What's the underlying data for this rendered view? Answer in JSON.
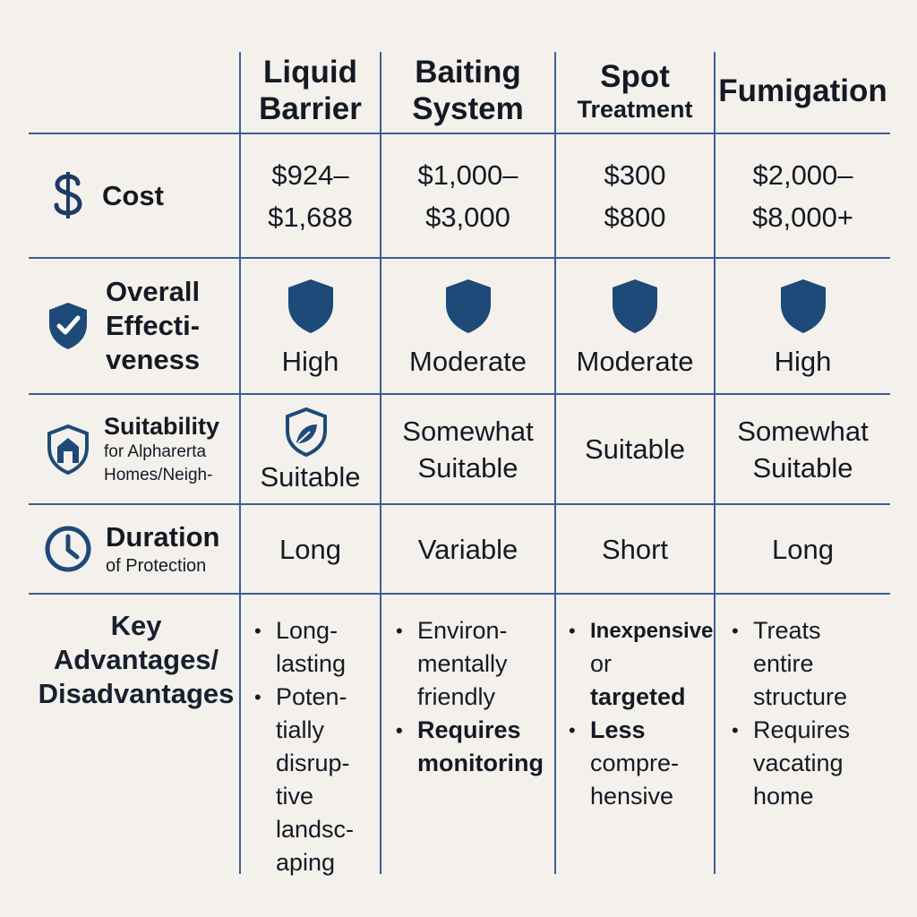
{
  "columns": [
    {
      "key": "liquid",
      "header": [
        "Liquid",
        "Barrier"
      ]
    },
    {
      "key": "baiting",
      "header": [
        "Baiting",
        "System"
      ]
    },
    {
      "key": "spot",
      "header": [
        "Spot",
        "Treatment"
      ]
    },
    {
      "key": "fumigation",
      "header": [
        "Fumigation"
      ]
    }
  ],
  "rows": {
    "cost": {
      "label": "Cost",
      "icon": "dollar-icon",
      "values": [
        [
          "$924–",
          "$1,688"
        ],
        [
          "$1,000–",
          "$3,000"
        ],
        [
          "$300",
          "$800"
        ],
        [
          "$2,000–",
          "$8,000+"
        ]
      ]
    },
    "effectiveness": {
      "label": [
        "Overall",
        "Effecti-",
        "veness"
      ],
      "icon": "shield-check-icon",
      "value_icon": "shield-icon",
      "values": [
        "High",
        "Moderate",
        "Moderate",
        "High"
      ]
    },
    "suitability": {
      "label": "Suitability",
      "sublabel": [
        "for Alpharerta",
        "Homes/Neigh-"
      ],
      "icon": "house-shield-icon",
      "values": [
        [
          "Suitable"
        ],
        [
          "Somewhat",
          "Suitable"
        ],
        [
          "Suitable"
        ],
        [
          "Somewhat",
          "Suitable"
        ]
      ]
    },
    "duration": {
      "label": "Duration",
      "sublabel": "of Protection",
      "icon": "clock-icon",
      "values": [
        "Long",
        "Variable",
        "Short",
        "Long"
      ]
    },
    "advantages": {
      "label": [
        "Key",
        "Advantages/",
        "Disadvantages"
      ],
      "values": [
        [
          [
            "Long-",
            "lasting"
          ],
          [
            "Poten-",
            "tially",
            "disrup-",
            "tive",
            "landsc-",
            "aping"
          ]
        ],
        [
          [
            "Environ-",
            "mentally",
            "friendly"
          ],
          [
            "Requires",
            "monitoring"
          ]
        ],
        [
          [
            "Inexpensive",
            "or",
            "targeted"
          ],
          [
            "Less",
            "compre-",
            "hensive"
          ]
        ],
        [
          [
            "Treats",
            "entire",
            "structure"
          ],
          [
            "Requires",
            "vacating",
            "home"
          ]
        ]
      ]
    }
  },
  "colors": {
    "background": "#f4f1ec",
    "grid": "#3b5f93",
    "icon": "#1d4a78",
    "text": "#141a24"
  }
}
